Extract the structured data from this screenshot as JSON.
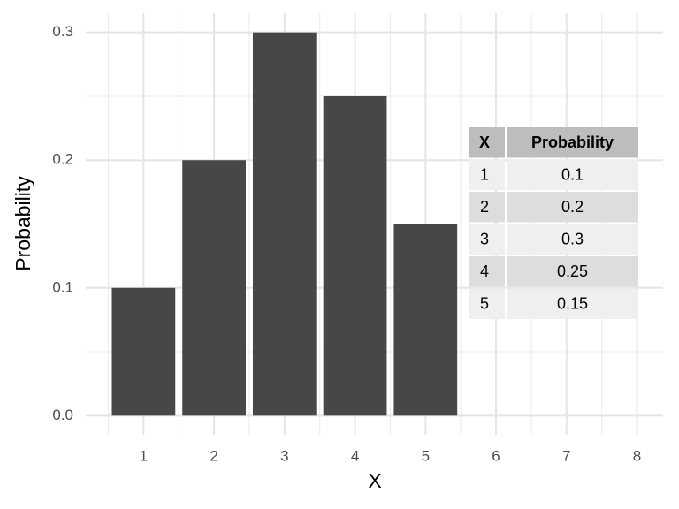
{
  "chart_data": {
    "type": "bar",
    "x_label": "X",
    "y_label": "Probability",
    "x": [
      1,
      2,
      3,
      4,
      5
    ],
    "values": [
      0.1,
      0.2,
      0.3,
      0.25,
      0.15
    ],
    "color": "#474747",
    "xlim": [
      0.18,
      8.37
    ],
    "xticks": [
      1,
      2,
      3,
      4,
      5,
      6,
      7,
      8
    ],
    "ylim": [
      -0.015,
      0.315
    ],
    "yticks": [
      {
        "value": 0,
        "label": "0.0"
      },
      0.1,
      0.2,
      0.3
    ],
    "grid": true
  },
  "table": {
    "columns": [
      "X",
      "Probability"
    ],
    "rows": [
      [
        1,
        0.1
      ],
      [
        2,
        0.2
      ],
      [
        3,
        0.3
      ],
      [
        4,
        0.25
      ],
      [
        5,
        0.15
      ]
    ]
  }
}
